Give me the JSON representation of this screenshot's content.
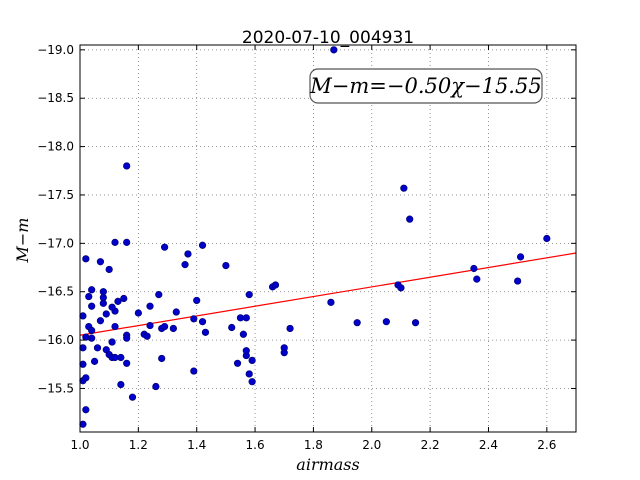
{
  "chart_data": {
    "type": "scatter",
    "title": "2020-07-10_004931",
    "xlabel": "airmass",
    "ylabel": "M−m",
    "xlim": [
      1.0,
      2.7
    ],
    "ylim": [
      -19.05,
      -15.05
    ],
    "y_inverted": true,
    "xticks": [
      1.0,
      1.2,
      1.4,
      1.6,
      1.8,
      2.0,
      2.2,
      2.4,
      2.6
    ],
    "yticks": [
      -15.5,
      -16.0,
      -16.5,
      -17.0,
      -17.5,
      -18.0,
      -18.5,
      -19.0
    ],
    "xtick_labels": [
      "1.0",
      "1.2",
      "1.4",
      "1.6",
      "1.8",
      "2.0",
      "2.2",
      "2.4",
      "2.6"
    ],
    "ytick_labels": [
      "−15.5",
      "−16.0",
      "−16.5",
      "−17.0",
      "−17.5",
      "−18.0",
      "−18.5",
      "−19.0"
    ],
    "grid": true,
    "annotation": "M−m=−0.50χ−15.55",
    "fit": {
      "slope": -0.5,
      "intercept": -15.55
    },
    "points": [
      [
        1.01,
        -15.13
      ],
      [
        1.02,
        -15.28
      ],
      [
        1.01,
        -15.58
      ],
      [
        1.02,
        -15.61
      ],
      [
        1.01,
        -15.75
      ],
      [
        1.01,
        -15.92
      ],
      [
        1.01,
        -16.25
      ],
      [
        1.02,
        -16.03
      ],
      [
        1.03,
        -16.14
      ],
      [
        1.04,
        -16.1
      ],
      [
        1.04,
        -16.02
      ],
      [
        1.03,
        -16.45
      ],
      [
        1.04,
        -16.52
      ],
      [
        1.04,
        -16.35
      ],
      [
        1.02,
        -16.84
      ],
      [
        1.05,
        -15.78
      ],
      [
        1.06,
        -15.92
      ],
      [
        1.07,
        -16.2
      ],
      [
        1.08,
        -16.38
      ],
      [
        1.08,
        -16.44
      ],
      [
        1.08,
        -16.5
      ],
      [
        1.07,
        -16.81
      ],
      [
        1.09,
        -16.27
      ],
      [
        1.09,
        -15.9
      ],
      [
        1.1,
        -15.85
      ],
      [
        1.11,
        -15.82
      ],
      [
        1.12,
        -15.82
      ],
      [
        1.11,
        -15.98
      ],
      [
        1.12,
        -16.14
      ],
      [
        1.12,
        -16.3
      ],
      [
        1.11,
        -16.34
      ],
      [
        1.13,
        -16.4
      ],
      [
        1.1,
        -16.73
      ],
      [
        1.12,
        -17.01
      ],
      [
        1.14,
        -15.54
      ],
      [
        1.14,
        -15.82
      ],
      [
        1.16,
        -15.76
      ],
      [
        1.16,
        -16.05
      ],
      [
        1.16,
        -16.02
      ],
      [
        1.15,
        -16.43
      ],
      [
        1.16,
        -17.01
      ],
      [
        1.16,
        -17.8
      ],
      [
        1.18,
        -15.41
      ],
      [
        1.2,
        -16.28
      ],
      [
        1.22,
        -16.06
      ],
      [
        1.23,
        -16.04
      ],
      [
        1.24,
        -16.15
      ],
      [
        1.24,
        -16.35
      ],
      [
        1.26,
        -15.52
      ],
      [
        1.27,
        -16.47
      ],
      [
        1.28,
        -15.81
      ],
      [
        1.28,
        -16.12
      ],
      [
        1.29,
        -16.14
      ],
      [
        1.29,
        -16.96
      ],
      [
        1.32,
        -16.12
      ],
      [
        1.33,
        -16.29
      ],
      [
        1.36,
        -16.78
      ],
      [
        1.37,
        -16.89
      ],
      [
        1.39,
        -15.68
      ],
      [
        1.4,
        -16.41
      ],
      [
        1.39,
        -16.22
      ],
      [
        1.42,
        -16.98
      ],
      [
        1.42,
        -16.19
      ],
      [
        1.43,
        -16.08
      ],
      [
        1.5,
        -16.77
      ],
      [
        1.52,
        -16.13
      ],
      [
        1.54,
        -15.76
      ],
      [
        1.55,
        -16.23
      ],
      [
        1.56,
        -16.06
      ],
      [
        1.57,
        -15.84
      ],
      [
        1.57,
        -15.89
      ],
      [
        1.57,
        -16.23
      ],
      [
        1.58,
        -15.65
      ],
      [
        1.59,
        -15.57
      ],
      [
        1.59,
        -15.79
      ],
      [
        1.58,
        -16.47
      ],
      [
        1.66,
        -16.55
      ],
      [
        1.67,
        -16.57
      ],
      [
        1.7,
        -15.87
      ],
      [
        1.7,
        -15.92
      ],
      [
        1.72,
        -16.12
      ],
      [
        1.86,
        -16.39
      ],
      [
        1.87,
        -19.0
      ],
      [
        1.95,
        -16.18
      ],
      [
        2.05,
        -16.19
      ],
      [
        2.09,
        -16.57
      ],
      [
        2.1,
        -16.54
      ],
      [
        2.11,
        -17.57
      ],
      [
        2.13,
        -17.25
      ],
      [
        2.15,
        -16.18
      ],
      [
        2.35,
        -16.74
      ],
      [
        2.36,
        -16.63
      ],
      [
        2.5,
        -16.61
      ],
      [
        2.51,
        -16.86
      ],
      [
        2.6,
        -17.05
      ]
    ]
  },
  "colors": {
    "point": "#0000c8",
    "point_edge": "#00006a",
    "fit_line": "#ff0000",
    "grid": "#7a7a7a",
    "axes": "#000000"
  }
}
